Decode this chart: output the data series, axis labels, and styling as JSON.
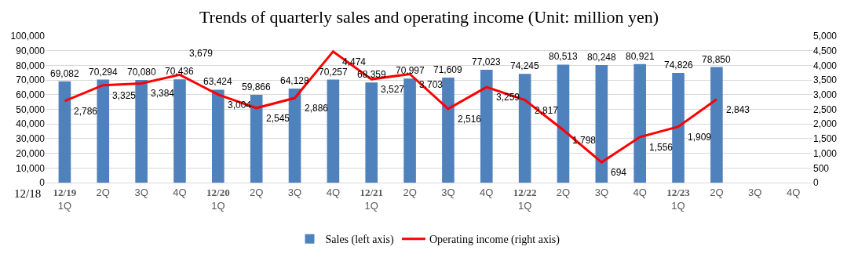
{
  "chart_data": {
    "type": "bar",
    "title": "Trends of quarterly sales and operating income (Unit: million yen)",
    "categories": [
      "12/19\n1Q",
      "2Q",
      "3Q",
      "4Q",
      "12/20\n1Q",
      "2Q",
      "3Q",
      "4Q",
      "12/21\n1Q",
      "2Q",
      "3Q",
      "4Q",
      "12/22\n1Q",
      "2Q",
      "3Q",
      "4Q",
      "12/23\n1Q",
      "2Q",
      "3Q",
      "4Q"
    ],
    "series": [
      {
        "name": "Sales (left axis)",
        "color": "#4f81bd",
        "values": [
          69082,
          70294,
          70080,
          70436,
          63424,
          59866,
          64128,
          70257,
          68359,
          70997,
          71609,
          77023,
          74245,
          80513,
          80248,
          80921,
          74826,
          78850,
          null,
          null
        ],
        "value_labels": [
          "69,082",
          "70,294",
          "70,080",
          "70,436",
          "63,424",
          "59,866",
          "64,128",
          "70,257",
          "68,359",
          "70,997",
          "71,609",
          "77,023",
          "74,245",
          "80,513",
          "80,248",
          "80,921",
          "74,826",
          "78,850",
          null,
          null
        ]
      },
      {
        "name": "Operating income (right axis)",
        "type": "line",
        "axis": "y2",
        "color": "#ff0000",
        "values": [
          2786,
          3325,
          3384,
          3679,
          3004,
          2545,
          2886,
          4474,
          3527,
          3703,
          2516,
          3259,
          2817,
          1798,
          694,
          1556,
          1909,
          2843,
          null,
          null
        ],
        "value_labels": [
          "2,786",
          "3,325",
          "3,384",
          "3,679",
          "3,004",
          "2,545",
          "2,886",
          "4,474",
          "3,527",
          "3,703",
          "2,516",
          "3,259",
          "2,817",
          "1,798",
          "694",
          "1,556",
          "1,909",
          "2,843",
          null,
          null
        ]
      }
    ],
    "ylim": [
      0,
      100000
    ],
    "yticks": [
      0,
      {
        "value": 10000,
        "label": "10,000"
      },
      {
        "value": 20000,
        "label": "20,000"
      },
      {
        "value": 30000,
        "label": "30,000"
      },
      {
        "value": 40000,
        "label": "40,000"
      },
      {
        "value": 50000,
        "label": "50,000"
      },
      {
        "value": 60000,
        "label": "60,000"
      },
      {
        "value": 70000,
        "label": "70,000"
      },
      {
        "value": 80000,
        "label": "80,000"
      },
      {
        "value": 90000,
        "label": "90,000"
      },
      {
        "value": 100000,
        "label": "100,000"
      }
    ],
    "y2lim": [
      0,
      5000
    ],
    "y2ticks": [
      0,
      500,
      {
        "value": 1000,
        "label": "1,000"
      },
      {
        "value": 1500,
        "label": "1,500"
      },
      {
        "value": 2000,
        "label": "2,000"
      },
      {
        "value": 2500,
        "label": "2,500"
      },
      {
        "value": 3000,
        "label": "3,000"
      },
      {
        "value": 3500,
        "label": "3,500"
      },
      {
        "value": 4000,
        "label": "4,000"
      },
      {
        "value": 4500,
        "label": "4,500"
      },
      {
        "value": 5000,
        "label": "5,000"
      }
    ],
    "annotations": [
      "12/18"
    ],
    "grid": "y",
    "legend": "bottom",
    "marker": "none",
    "line_style": "solid"
  }
}
